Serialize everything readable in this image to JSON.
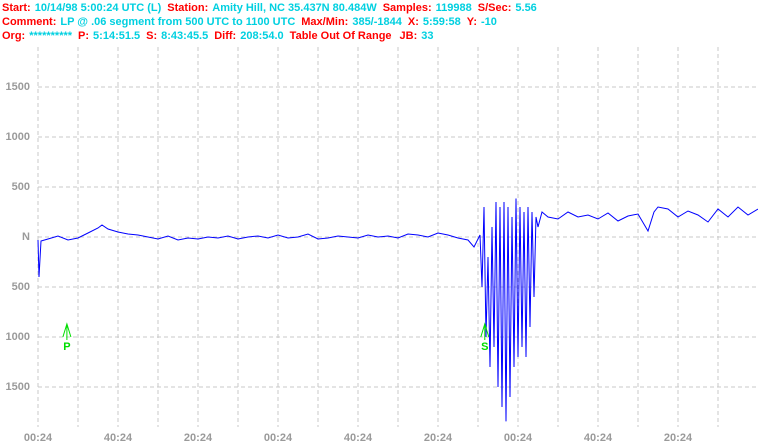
{
  "header": {
    "lines": [
      [
        {
          "label": "Start:",
          "value": "10/14/98  5:00:24 UTC (L)"
        },
        {
          "label": "Station:",
          "value": "Amity Hill, NC 35.437N 80.484W"
        },
        {
          "label": "Samples:",
          "value": "119988"
        },
        {
          "label": "S/Sec:",
          "value": "5.56"
        }
      ],
      [
        {
          "label": "Comment:",
          "value": "LP @ .06 segment from 500 UTC to 1100 UTC"
        },
        {
          "label": "Max/Min:",
          "value": "385/-1844"
        },
        {
          "label": "X:",
          "value": "5:59:58"
        },
        {
          "label": "Y:",
          "value": "-10"
        }
      ],
      [
        {
          "label": "Org:",
          "value": "**********"
        },
        {
          "label": "P:",
          "value": "5:14:51.5"
        },
        {
          "label": "S:",
          "value": "8:43:45.5"
        },
        {
          "label": "Diff:",
          "value": "208:54.0"
        },
        {
          "label": "Table Out Of Range",
          "value": null
        },
        {
          "label": "JB:",
          "value": "33"
        }
      ]
    ]
  },
  "chart_data": {
    "type": "line",
    "x": [
      0,
      0.5,
      1.5,
      5,
      10,
      15,
      20,
      25,
      30,
      32,
      35,
      40,
      45,
      50,
      55,
      60,
      65,
      70,
      75,
      80,
      85,
      90,
      95,
      100,
      105,
      110,
      115,
      120,
      125,
      130,
      135,
      140,
      145,
      150,
      155,
      160,
      165,
      170,
      175,
      180,
      185,
      190,
      195,
      200,
      205,
      210,
      215,
      218,
      221,
      222,
      223,
      224,
      225,
      226,
      227,
      228,
      229,
      230,
      231,
      232,
      233,
      234,
      235,
      236,
      237,
      238,
      239,
      240,
      241,
      242,
      243,
      244,
      245,
      246,
      247,
      248,
      249,
      250,
      252,
      255,
      260,
      265,
      270,
      275,
      280,
      285,
      290,
      295,
      300,
      305,
      308,
      310,
      315,
      320,
      325,
      330,
      335,
      340,
      345,
      350,
      355,
      360
    ],
    "series": [
      {
        "name": "trace",
        "color": "#0000ff",
        "values": [
          -30,
          -400,
          -40,
          -20,
          10,
          -30,
          -10,
          40,
          90,
          120,
          80,
          50,
          30,
          20,
          0,
          -20,
          10,
          -30,
          -10,
          -20,
          0,
          -10,
          10,
          -20,
          0,
          10,
          -10,
          20,
          -10,
          0,
          30,
          -20,
          -10,
          10,
          0,
          -10,
          20,
          0,
          10,
          -10,
          30,
          20,
          0,
          40,
          20,
          -10,
          -30,
          -100,
          20,
          -500,
          300,
          -1000,
          -200,
          -1300,
          100,
          -1100,
          350,
          -1500,
          300,
          -1700,
          350,
          -1844,
          300,
          -1600,
          200,
          -1300,
          385,
          -1200,
          300,
          -1100,
          250,
          -1200,
          300,
          -900,
          250,
          -600,
          200,
          100,
          250,
          200,
          180,
          250,
          200,
          220,
          180,
          240,
          160,
          210,
          230,
          60,
          250,
          300,
          280,
          200,
          260,
          220,
          150,
          280,
          200,
          300,
          220,
          280
        ]
      }
    ],
    "xlim": [
      0,
      360
    ],
    "xticks": [
      {
        "value": 0,
        "label": "00:24"
      },
      {
        "value": 40,
        "label": "40:24"
      },
      {
        "value": 80,
        "label": "20:24"
      },
      {
        "value": 120,
        "label": "00:24"
      },
      {
        "value": 160,
        "label": "40:24"
      },
      {
        "value": 200,
        "label": "20:24"
      },
      {
        "value": 240,
        "label": "00:24"
      },
      {
        "value": 280,
        "label": "40:24"
      },
      {
        "value": 320,
        "label": "20:24"
      }
    ],
    "xminor_ticks": [
      20,
      60,
      100,
      140,
      180,
      220,
      260,
      300,
      340
    ],
    "ylim": [
      -1900,
      1900
    ],
    "yticks": [
      1500,
      1000,
      500,
      {
        "value": 0,
        "label": "N"
      },
      {
        "value": -500,
        "label": "500"
      },
      {
        "value": -1000,
        "label": "1000"
      },
      {
        "value": -1500,
        "label": "1500"
      }
    ],
    "grid": true,
    "markers": [
      {
        "label": "P",
        "x": 14.45,
        "color": "#00dd00"
      },
      {
        "label": "S",
        "x": 223.4,
        "color": "#00dd00"
      }
    ]
  }
}
